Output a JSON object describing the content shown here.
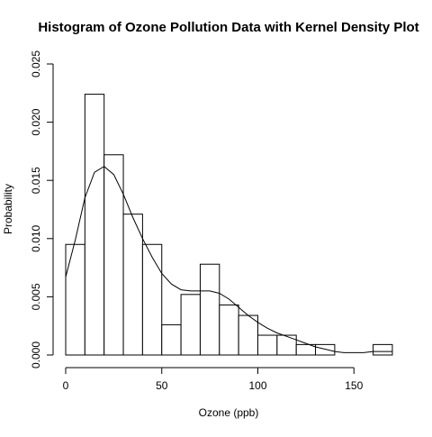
{
  "chart_data": {
    "type": "bar",
    "title": "Histogram of Ozone Pollution Data with Kernel Density Plot",
    "xlabel": "Ozone (ppb)",
    "ylabel": "Probability",
    "xlim": [
      0,
      170
    ],
    "ylim": [
      0,
      0.025
    ],
    "x_ticks": [
      0,
      50,
      100,
      150
    ],
    "y_ticks": [
      0.0,
      0.005,
      0.01,
      0.015,
      0.02,
      0.025
    ],
    "x_tick_labels": [
      "0",
      "50",
      "100",
      "150"
    ],
    "y_tick_labels": [
      "0.000",
      "0.005",
      "0.010",
      "0.015",
      "0.020",
      "0.025"
    ],
    "grid": false,
    "histogram": {
      "bins": [
        [
          0,
          10
        ],
        [
          10,
          20
        ],
        [
          20,
          30
        ],
        [
          30,
          40
        ],
        [
          40,
          50
        ],
        [
          50,
          60
        ],
        [
          60,
          70
        ],
        [
          70,
          80
        ],
        [
          80,
          90
        ],
        [
          90,
          100
        ],
        [
          100,
          110
        ],
        [
          110,
          120
        ],
        [
          120,
          130
        ],
        [
          130,
          140
        ],
        [
          160,
          170
        ]
      ],
      "values": [
        0.0095,
        0.0224,
        0.0172,
        0.0121,
        0.0095,
        0.0026,
        0.0052,
        0.0078,
        0.0043,
        0.0034,
        0.0017,
        0.0017,
        0.0009,
        0.0009,
        0.0009
      ]
    },
    "density": {
      "x": [
        0,
        5,
        10,
        15,
        20,
        25,
        30,
        35,
        40,
        45,
        50,
        55,
        60,
        65,
        70,
        75,
        80,
        85,
        90,
        95,
        100,
        105,
        110,
        115,
        120,
        125,
        130,
        135,
        140,
        145,
        150,
        155,
        160,
        165,
        170
      ],
      "y": [
        0.0067,
        0.0099,
        0.0135,
        0.0157,
        0.0162,
        0.0155,
        0.0138,
        0.0118,
        0.01,
        0.0084,
        0.007,
        0.0061,
        0.0056,
        0.0055,
        0.0055,
        0.0055,
        0.0053,
        0.0048,
        0.0041,
        0.0034,
        0.0028,
        0.0023,
        0.0019,
        0.0016,
        0.0013,
        0.001,
        0.0007,
        0.0005,
        0.0003,
        0.0002,
        0.0002,
        0.0002,
        0.0003,
        0.0003,
        0.0003
      ]
    }
  }
}
